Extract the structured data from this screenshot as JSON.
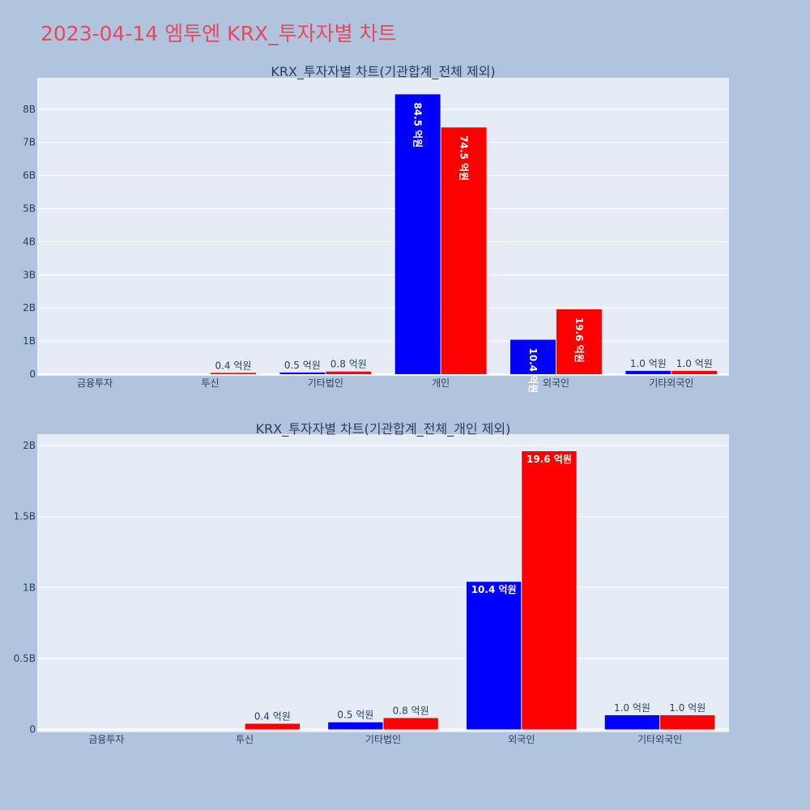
{
  "page": {
    "title": "2023-04-14 엠투엔 KRX_투자자별 차트"
  },
  "colors": {
    "background": "#b0c4de",
    "plot_background": "#e5ecf6",
    "title": "#e8475f",
    "series_1": "#0000ff",
    "series_2": "#ff0000",
    "text": "#2a3f5f"
  },
  "chart_data": [
    {
      "type": "bar",
      "title": "KRX_투자자별 차트(기관합계_전체 제외)",
      "xlabel": "",
      "ylabel": "",
      "categories": [
        "금융투자",
        "투신",
        "기타법인",
        "개인",
        "외국인",
        "기타외국인"
      ],
      "ylim": [
        -50000000,
        8950000000
      ],
      "yticks": [
        0,
        1000000000,
        2000000000,
        3000000000,
        4000000000,
        5000000000,
        6000000000,
        7000000000,
        8000000000
      ],
      "ytick_labels": [
        "0",
        "1B",
        "2B",
        "3B",
        "4B",
        "5B",
        "6B",
        "7B",
        "8B"
      ],
      "grid": true,
      "legend": "none",
      "series": [
        {
          "color": "#0000ff",
          "values": [
            0,
            0,
            50000000,
            8450000000,
            1040000000,
            100000000
          ],
          "labels": [
            "",
            "",
            "0.5 억원",
            "84.5 억원",
            "10.4 억원",
            "1.0 억원"
          ]
        },
        {
          "color": "#ff0000",
          "values": [
            0,
            40000000,
            80000000,
            7450000000,
            1960000000,
            100000000
          ],
          "labels": [
            "",
            "0.4 억원",
            "0.8 억원",
            "74.5 억원",
            "19.6 억원",
            "1.0 억원"
          ]
        }
      ]
    },
    {
      "type": "bar",
      "title": "KRX_투자자별 차트(기관합계_전체_개인 제외)",
      "xlabel": "",
      "ylabel": "",
      "categories": [
        "금융투자",
        "투신",
        "기타법인",
        "외국인",
        "기타외국인"
      ],
      "ylim": [
        -20000000,
        2080000000
      ],
      "yticks": [
        0,
        500000000,
        1000000000,
        1500000000,
        2000000000
      ],
      "ytick_labels": [
        "0",
        "0.5B",
        "1B",
        "1.5B",
        "2B"
      ],
      "grid": true,
      "legend": "none",
      "series": [
        {
          "color": "#0000ff",
          "values": [
            0,
            0,
            50000000,
            1040000000,
            100000000
          ],
          "labels": [
            "",
            "",
            "0.5 억원",
            "10.4 억원",
            "1.0 억원"
          ]
        },
        {
          "color": "#ff0000",
          "values": [
            0,
            40000000,
            80000000,
            1960000000,
            100000000
          ],
          "labels": [
            "",
            "0.4 억원",
            "0.8 억원",
            "19.6 억원",
            "1.0 억원"
          ]
        }
      ]
    }
  ]
}
